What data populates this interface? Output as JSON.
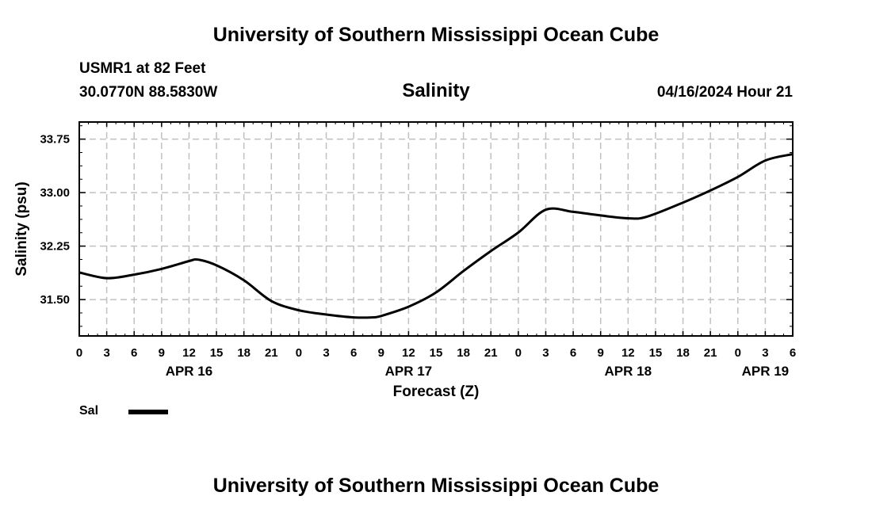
{
  "header": {
    "title": "University of Southern Mississippi Ocean Cube",
    "station": "USMR1 at 82 Feet",
    "coords": "30.0770N  88.5830W",
    "timestamp": "04/16/2024 Hour 21"
  },
  "footer": {
    "title": "University of Southern Mississippi Ocean Cube"
  },
  "legend": {
    "series_label": "Sal"
  },
  "chart_data": {
    "type": "line",
    "title": "Salinity",
    "xlabel": "Forecast (Z)",
    "ylabel": "Salinity (psu)",
    "ylim": [
      30.99,
      33.99
    ],
    "xlim": [
      0,
      78
    ],
    "grid": true,
    "yticks": [
      31.5,
      32.25,
      33.0,
      33.75
    ],
    "ytick_labels": [
      "31.50",
      "32.25",
      "33.00",
      "33.75"
    ],
    "xtick_hours": [
      0,
      3,
      6,
      9,
      12,
      15,
      18,
      21,
      24,
      27,
      30,
      33,
      36,
      39,
      42,
      45,
      48,
      51,
      54,
      57,
      60,
      63,
      66,
      69,
      72,
      75,
      78
    ],
    "xtick_labels": [
      "0",
      "3",
      "6",
      "9",
      "12",
      "15",
      "18",
      "21",
      "0",
      "3",
      "6",
      "9",
      "12",
      "15",
      "18",
      "21",
      "0",
      "3",
      "6",
      "9",
      "12",
      "15",
      "18",
      "21",
      "0",
      "3",
      "6"
    ],
    "date_labels": [
      {
        "label": "APR 16",
        "hour": 12
      },
      {
        "label": "APR 17",
        "hour": 36
      },
      {
        "label": "APR 18",
        "hour": 60
      },
      {
        "label": "APR 19",
        "hour": 75
      }
    ],
    "series": [
      {
        "name": "Sal",
        "color": "#000000",
        "x": [
          0,
          3,
          6,
          9,
          12,
          13,
          15,
          18,
          21,
          24,
          27,
          30,
          32,
          33,
          36,
          39,
          42,
          45,
          48,
          51,
          54,
          57,
          60,
          62,
          66,
          69,
          72,
          75,
          78
        ],
        "y": [
          31.88,
          31.8,
          31.85,
          31.93,
          32.04,
          32.06,
          31.98,
          31.77,
          31.48,
          31.35,
          31.29,
          31.25,
          31.25,
          31.27,
          31.4,
          31.6,
          31.9,
          32.18,
          32.44,
          32.76,
          32.73,
          32.68,
          32.64,
          32.66,
          32.86,
          33.03,
          33.22,
          33.45,
          33.54
        ]
      }
    ]
  }
}
